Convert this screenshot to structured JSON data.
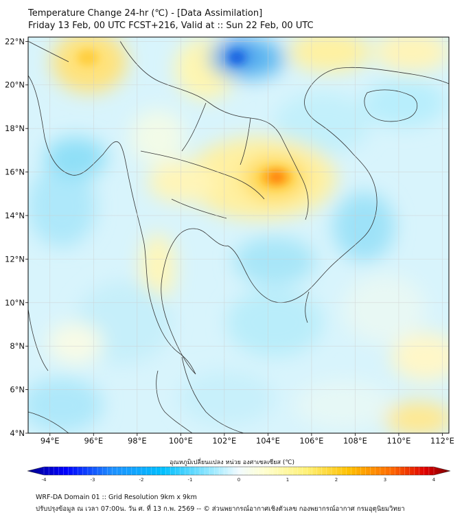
{
  "header": {
    "title": "Temperature Change 24-hr (℃) - [Data Assimilation]",
    "subtitle": "Friday 13 Feb, 00 UTC FCST+216, Valid at :: Sun 22 Feb, 00 UTC"
  },
  "map": {
    "lat_labels": [
      "22°N",
      "20°N",
      "18°N",
      "16°N",
      "14°N",
      "12°N",
      "10°N",
      "8°N",
      "6°N",
      "4°N"
    ],
    "lon_labels": [
      "94°E",
      "96°E",
      "98°E",
      "100°E",
      "102°E",
      "104°E",
      "106°E",
      "108°E",
      "110°E",
      "112°E"
    ],
    "lat_range": [
      4,
      22.2
    ],
    "lon_range": [
      93,
      112.3
    ]
  },
  "colorbar": {
    "label": "อุณหภูมิเปลี่ยนแปลง หน่วย องศาเซลเซียส (℃)",
    "ticks": [
      "-4",
      "-3",
      "-2",
      "-1",
      "0",
      "1",
      "2",
      "3",
      "4"
    ],
    "range": [
      -4,
      4
    ],
    "colors": [
      "#00008b",
      "#0000ff",
      "#1e90ff",
      "#00bfff",
      "#7fe3ff",
      "#e6f7ff",
      "#ffffd9",
      "#fff176",
      "#ffc000",
      "#ff6a00",
      "#e00000",
      "#7a0000"
    ]
  },
  "footer": {
    "line1": "WRF-DA Domain 01 :: Grid Resolution 9km x 9km",
    "line2": "ปรับปรุงข้อมูล ณ เวลา 07:00น. วัน ศ. ที่ 13 ก.พ. 2569 -- © ส่วนพยากรณ์อากาศเชิงตัวเลข กองพยากรณ์อากาศ กรมอุตุนิยมวิทยา"
  }
}
